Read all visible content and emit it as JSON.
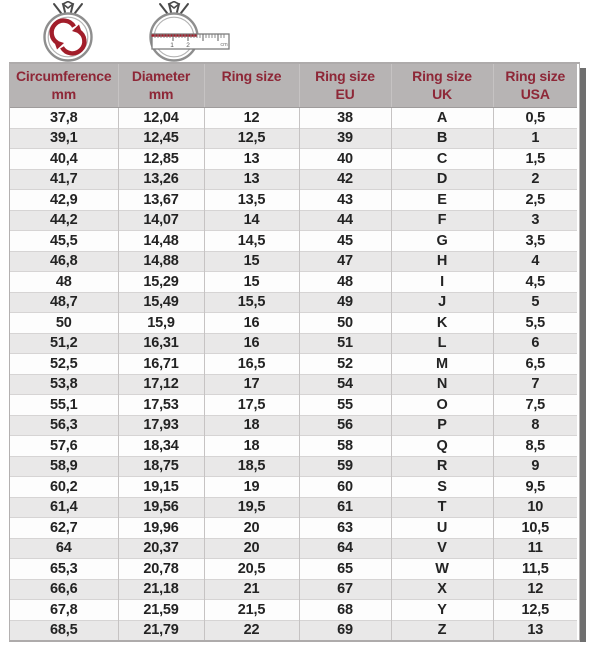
{
  "icons": {
    "circumference_icon": "ring-circumference-icon",
    "diameter_icon": "ring-diameter-icon",
    "ruler_unit_label": "cm",
    "ruler_marks": [
      "1",
      "2"
    ]
  },
  "colors": {
    "header_bg": "#b7b4b4",
    "header_text": "#8e2737",
    "row_alt_bg": "#e9e8e8",
    "accent_red": "#a21d2a",
    "shadow_strip": "#6f6f6f"
  },
  "chart_data": {
    "type": "table",
    "columns": [
      {
        "title": "Circumference",
        "sub": "mm"
      },
      {
        "title": "Diameter",
        "sub": "mm"
      },
      {
        "title": "Ring size",
        "sub": ""
      },
      {
        "title": "Ring size",
        "sub": "EU"
      },
      {
        "title": "Ring size",
        "sub": "UK"
      },
      {
        "title": "Ring size",
        "sub": "USA"
      }
    ],
    "rows": [
      [
        "37,8",
        "12,04",
        "12",
        "38",
        "A",
        "0,5"
      ],
      [
        "39,1",
        "12,45",
        "12,5",
        "39",
        "B",
        "1"
      ],
      [
        "40,4",
        "12,85",
        "13",
        "40",
        "C",
        "1,5"
      ],
      [
        "41,7",
        "13,26",
        "13",
        "42",
        "D",
        "2"
      ],
      [
        "42,9",
        "13,67",
        "13,5",
        "43",
        "E",
        "2,5"
      ],
      [
        "44,2",
        "14,07",
        "14",
        "44",
        "F",
        "3"
      ],
      [
        "45,5",
        "14,48",
        "14,5",
        "45",
        "G",
        "3,5"
      ],
      [
        "46,8",
        "14,88",
        "15",
        "47",
        "H",
        "4"
      ],
      [
        "48",
        "15,29",
        "15",
        "48",
        "I",
        "4,5"
      ],
      [
        "48,7",
        "15,49",
        "15,5",
        "49",
        "J",
        "5"
      ],
      [
        "50",
        "15,9",
        "16",
        "50",
        "K",
        "5,5"
      ],
      [
        "51,2",
        "16,31",
        "16",
        "51",
        "L",
        "6"
      ],
      [
        "52,5",
        "16,71",
        "16,5",
        "52",
        "M",
        "6,5"
      ],
      [
        "53,8",
        "17,12",
        "17",
        "54",
        "N",
        "7"
      ],
      [
        "55,1",
        "17,53",
        "17,5",
        "55",
        "O",
        "7,5"
      ],
      [
        "56,3",
        "17,93",
        "18",
        "56",
        "P",
        "8"
      ],
      [
        "57,6",
        "18,34",
        "18",
        "58",
        "Q",
        "8,5"
      ],
      [
        "58,9",
        "18,75",
        "18,5",
        "59",
        "R",
        "9"
      ],
      [
        "60,2",
        "19,15",
        "19",
        "60",
        "S",
        "9,5"
      ],
      [
        "61,4",
        "19,56",
        "19,5",
        "61",
        "T",
        "10"
      ],
      [
        "62,7",
        "19,96",
        "20",
        "63",
        "U",
        "10,5"
      ],
      [
        "64",
        "20,37",
        "20",
        "64",
        "V",
        "11"
      ],
      [
        "65,3",
        "20,78",
        "20,5",
        "65",
        "W",
        "11,5"
      ],
      [
        "66,6",
        "21,18",
        "21",
        "67",
        "X",
        "12"
      ],
      [
        "67,8",
        "21,59",
        "21,5",
        "68",
        "Y",
        "12,5"
      ],
      [
        "68,5",
        "21,79",
        "22",
        "69",
        "Z",
        "13"
      ]
    ]
  }
}
